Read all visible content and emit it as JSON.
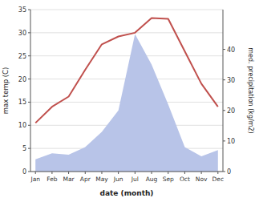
{
  "chart_data": {
    "type": "line",
    "categories": [
      "Jan",
      "Feb",
      "Mar",
      "Apr",
      "May",
      "Jun",
      "Jul",
      "Aug",
      "Sep",
      "Oct",
      "Nov",
      "Dec"
    ],
    "series": [
      {
        "type": "area",
        "axis": "y2",
        "color": "#b8c4e8",
        "values": [
          4.0,
          6.0,
          5.5,
          8.0,
          13.0,
          20.0,
          45.0,
          35.0,
          22.0,
          8.0,
          5.0,
          7.0
        ]
      },
      {
        "type": "line",
        "color": "#c0504d",
        "values": [
          10.5,
          14.0,
          16.2,
          22.0,
          27.5,
          29.2,
          30.0,
          33.2,
          33.0,
          26.0,
          19.0,
          14.0
        ]
      }
    ],
    "xlabel": "date (month)",
    "ylabel": "max temp (C)",
    "y2label": "med. precipitation (kg/m2)",
    "ylim": [
      0,
      35
    ],
    "yticks": [
      0,
      5,
      10,
      15,
      20,
      25,
      30,
      35
    ],
    "y2lim": [
      0,
      53
    ],
    "y2ticks": [
      0,
      10,
      20,
      30,
      40
    ],
    "grid": true
  }
}
